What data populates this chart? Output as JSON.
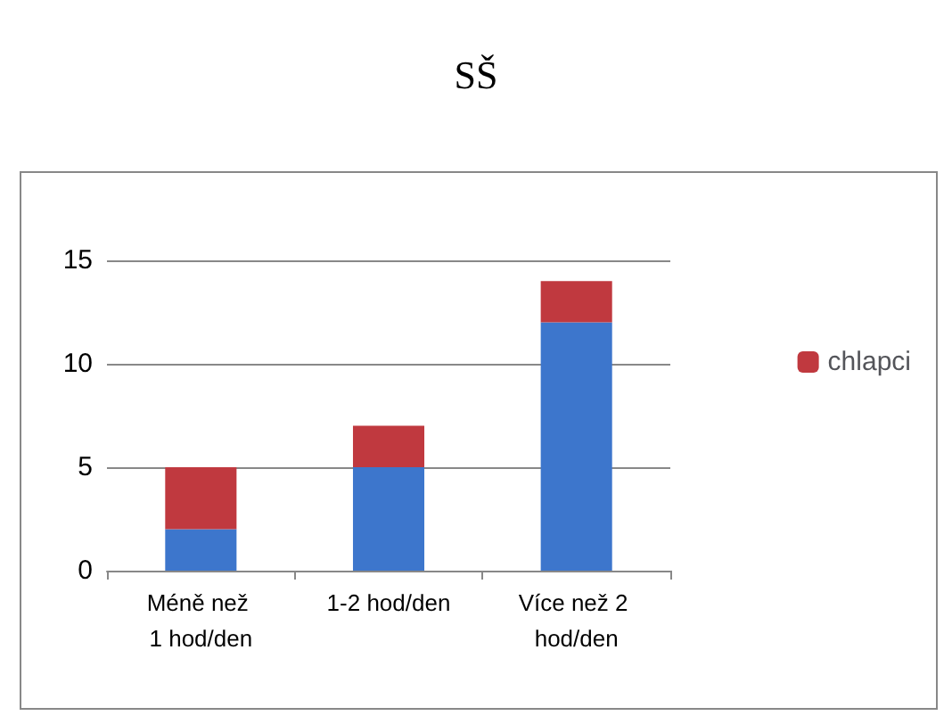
{
  "chart_data": {
    "type": "bar",
    "title": "SŠ",
    "categories": [
      "Méně než 1 hod/den",
      "1-2 hod/den",
      "Více než 2 hod/den"
    ],
    "stacked": true,
    "series": [
      {
        "color": "#3d76cc",
        "values": [
          2,
          5,
          12
        ]
      },
      {
        "name": "chlapci",
        "color": "#c0393f",
        "values": [
          3,
          2,
          2
        ]
      }
    ],
    "ylim": [
      0,
      15
    ],
    "yticks": [
      0,
      5,
      10,
      15
    ],
    "grid": "y",
    "legend": "right"
  }
}
